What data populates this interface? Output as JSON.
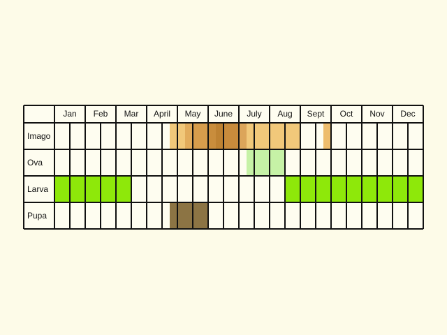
{
  "months": [
    "Jan",
    "Feb",
    "Mar",
    "April",
    "May",
    "June",
    "July",
    "Aug",
    "Sept",
    "Oct",
    "Nov",
    "Dec"
  ],
  "stages": [
    "Imago",
    "Ova",
    "Larva",
    "Pupa"
  ],
  "colors": {
    "background": "#fdfbe8",
    "cell": "#fefdf0",
    "grid": "#111111"
  },
  "activity": {
    "Imago": [
      {
        "from": 7.5,
        "to": 8.5,
        "color": "#f1c87a"
      },
      {
        "from": 8.5,
        "to": 9.0,
        "color": "#e2ac5c"
      },
      {
        "from": 9.0,
        "to": 10.0,
        "color": "#d79d4c"
      },
      {
        "from": 10.0,
        "to": 10.5,
        "color": "#c98d3c"
      },
      {
        "from": 10.5,
        "to": 11.0,
        "color": "#be8232"
      },
      {
        "from": 11.0,
        "to": 12.0,
        "color": "#c88b3c"
      },
      {
        "from": 12.0,
        "to": 12.5,
        "color": "#dca55a"
      },
      {
        "from": 12.5,
        "to": 16.0,
        "color": "#f1c87a"
      },
      {
        "from": 17.5,
        "to": 18.0,
        "color": "#eebd6d"
      }
    ],
    "Ova": [
      {
        "from": 12.5,
        "to": 15.0,
        "color": "#c6f2a6"
      }
    ],
    "Larva": [
      {
        "from": 0.0,
        "to": 5.0,
        "color": "#8ee80a"
      },
      {
        "from": 8.0,
        "to": 9.0,
        "color": "#fefdf0"
      },
      {
        "from": 9.0,
        "to": 12.0,
        "color": "#fefdf0"
      },
      {
        "from": 15.0,
        "to": 24.0,
        "color": "#8ee80a"
      }
    ],
    "Pupa": [
      {
        "from": 7.5,
        "to": 10.0,
        "color": "#8c7444"
      }
    ]
  }
}
